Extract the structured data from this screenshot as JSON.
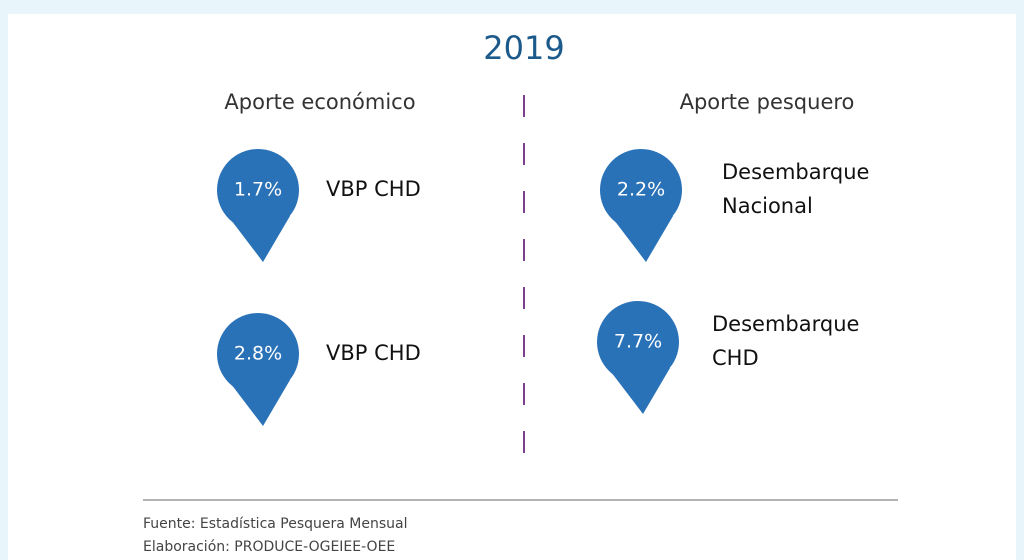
{
  "title": "2019",
  "columns": [
    {
      "heading": "Aporte económico",
      "items": [
        {
          "value": "1.7%",
          "label": [
            "VBP CHD"
          ]
        },
        {
          "value": "2.8%",
          "label": [
            "VBP CHD"
          ]
        }
      ]
    },
    {
      "heading": "Aporte pesquero",
      "items": [
        {
          "value": "2.2%",
          "label": [
            "Desembarque",
            "Nacional"
          ]
        },
        {
          "value": "7.7%",
          "label": [
            "Desembarque",
            "CHD"
          ]
        }
      ]
    }
  ],
  "footer": [
    "Fuente: Estadística Pesquera Mensual",
    "Elaboración: PRODUCE-OGEIEE-OEE"
  ]
}
